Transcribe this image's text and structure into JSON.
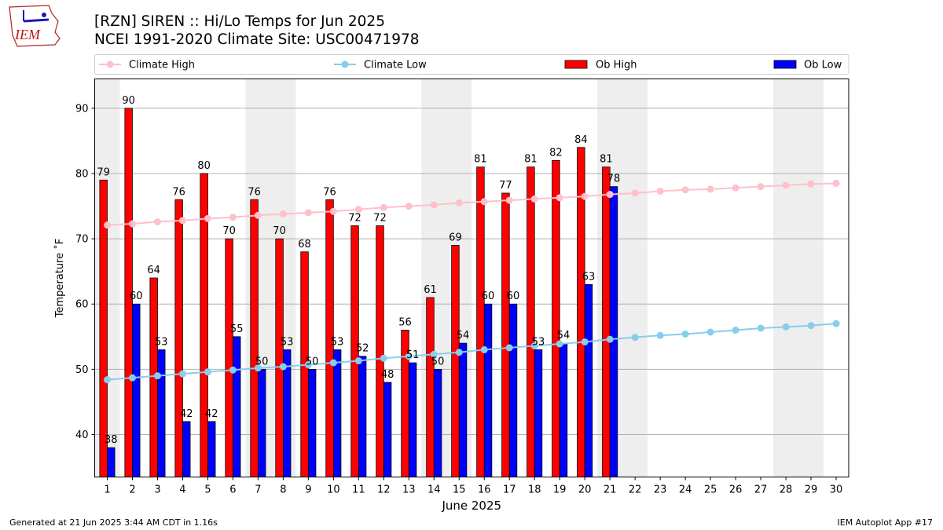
{
  "header": {
    "title_line1": "[RZN] SIREN :: Hi/Lo Temps for Jun 2025",
    "title_line2": "NCEI 1991-2020 Climate Site: USC00471978",
    "logo_text": "IEM"
  },
  "footer": {
    "generated": "Generated at 21 Jun 2025 3:44 AM CDT in 1.16s",
    "app": "IEM Autoplot App #17"
  },
  "colors": {
    "ob_high": "#ff0000",
    "ob_low": "#0000ff",
    "climate_high": "#ffc0cb",
    "climate_low": "#87ceeb",
    "weekend_shade": "#eeeeee",
    "grid": "#b0b0b0"
  },
  "chart_data": {
    "type": "bar",
    "xlabel": "June 2025",
    "ylabel": "Temperature ˚F",
    "xlim": [
      0.5,
      30.5
    ],
    "ylim": [
      33.5,
      94.5
    ],
    "yticks": [
      40,
      50,
      60,
      70,
      80,
      90
    ],
    "grid": "horizontal",
    "legend_position": "top",
    "weekend_shading_days": [
      1,
      7,
      8,
      14,
      15,
      21,
      22,
      28,
      29
    ],
    "days": [
      1,
      2,
      3,
      4,
      5,
      6,
      7,
      8,
      9,
      10,
      11,
      12,
      13,
      14,
      15,
      16,
      17,
      18,
      19,
      20,
      21,
      22,
      23,
      24,
      25,
      26,
      27,
      28,
      29,
      30
    ],
    "series": [
      {
        "name": "Climate High",
        "kind": "line",
        "values": [
          72.1,
          72.3,
          72.6,
          72.8,
          73.1,
          73.3,
          73.6,
          73.8,
          74.0,
          74.2,
          74.5,
          74.8,
          75.0,
          75.2,
          75.5,
          75.7,
          75.9,
          76.1,
          76.3,
          76.5,
          76.8,
          77.0,
          77.3,
          77.5,
          77.6,
          77.8,
          78.0,
          78.2,
          78.4,
          78.5
        ]
      },
      {
        "name": "Climate Low",
        "kind": "line",
        "values": [
          48.4,
          48.7,
          49.0,
          49.3,
          49.6,
          49.9,
          50.2,
          50.4,
          50.7,
          51.0,
          51.3,
          51.7,
          52.0,
          52.3,
          52.6,
          53.0,
          53.3,
          53.6,
          53.9,
          54.2,
          54.6,
          54.9,
          55.2,
          55.4,
          55.7,
          56.0,
          56.3,
          56.5,
          56.7,
          57.0
        ]
      },
      {
        "name": "Ob High",
        "kind": "bar",
        "values": [
          79,
          90,
          64,
          76,
          80,
          70,
          76,
          70,
          68,
          76,
          72,
          72,
          56,
          61,
          69,
          81,
          77,
          81,
          82,
          84,
          81
        ]
      },
      {
        "name": "Ob Low",
        "kind": "bar",
        "values": [
          38,
          60,
          53,
          42,
          42,
          55,
          50,
          53,
          50,
          53,
          52,
          48,
          51,
          50,
          54,
          60,
          60,
          53,
          54,
          63,
          78
        ]
      }
    ]
  }
}
